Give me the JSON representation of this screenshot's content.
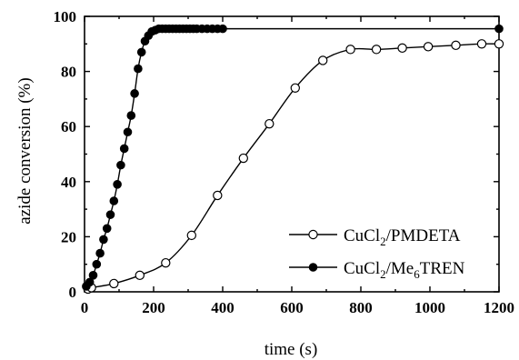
{
  "chart_data": {
    "type": "line",
    "xlabel": "time (s)",
    "ylabel": "azide conversion (%)",
    "xlim": [
      0,
      1200
    ],
    "ylim": [
      0,
      100
    ],
    "xticks": [
      0,
      200,
      400,
      600,
      800,
      1000,
      1200
    ],
    "yticks": [
      0,
      20,
      40,
      60,
      80,
      100
    ],
    "legend_position": "bottom-right",
    "series": [
      {
        "name": "CuCl2/PMDETA",
        "legend": {
          "main": "CuCl",
          "sub1": "2",
          "rest": "/PMDETA"
        },
        "marker": "open-circle",
        "x": [
          10,
          20,
          85,
          160,
          235,
          310,
          385,
          460,
          535,
          610,
          690,
          770,
          845,
          920,
          995,
          1075,
          1150,
          1200
        ],
        "y": [
          1,
          1.5,
          3,
          6,
          10.5,
          20.5,
          35,
          48.5,
          61,
          74,
          84,
          88,
          88,
          88.5,
          89,
          89.5,
          90,
          90
        ]
      },
      {
        "name": "CuCl2/Me6TREN",
        "legend": {
          "main": "CuCl",
          "sub1": "2",
          "mid": "/Me",
          "sub2": "6",
          "rest": "TREN"
        },
        "marker": "filled-circle",
        "x": [
          5,
          15,
          25,
          35,
          45,
          55,
          65,
          75,
          85,
          95,
          105,
          115,
          125,
          135,
          145,
          155,
          165,
          175,
          185,
          195,
          205,
          215,
          225,
          235,
          245,
          255,
          265,
          275,
          285,
          295,
          305,
          315,
          325,
          340,
          355,
          370,
          385,
          400,
          1200
        ],
        "y": [
          2,
          3.5,
          6,
          10,
          14,
          19,
          23,
          28,
          33,
          39,
          46,
          52,
          58,
          64,
          72,
          81,
          87,
          91,
          93,
          94.5,
          95,
          95.5,
          95.5,
          95.5,
          95.5,
          95.5,
          95.5,
          95.5,
          95.5,
          95.5,
          95.5,
          95.5,
          95.5,
          95.5,
          95.5,
          95.5,
          95.5,
          95.5,
          95.5
        ]
      }
    ]
  }
}
